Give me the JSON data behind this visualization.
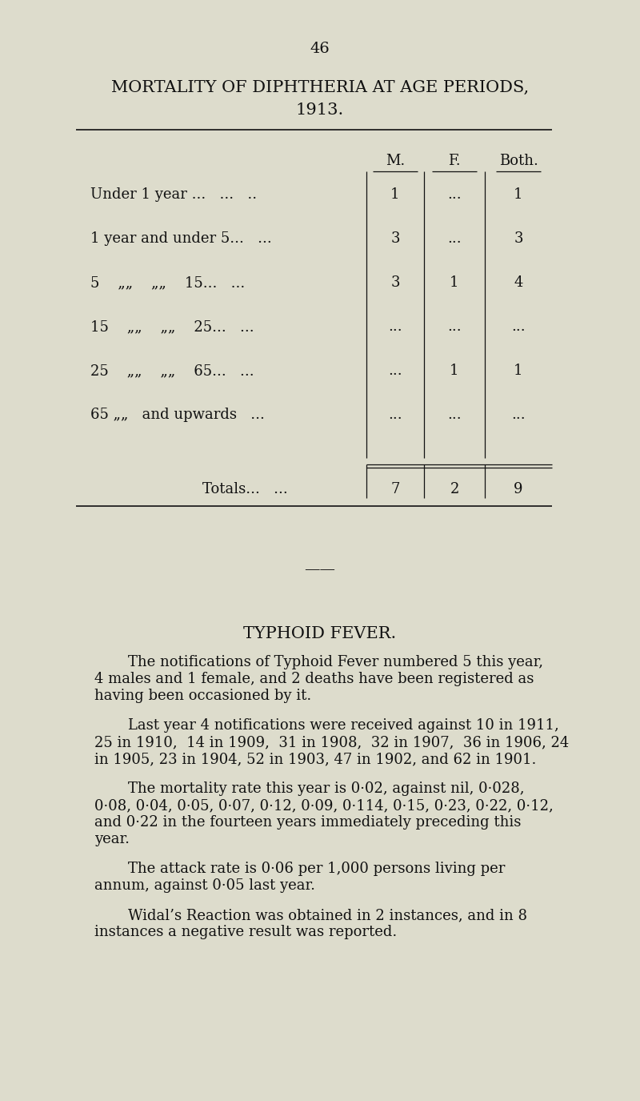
{
  "page_number": "46",
  "background_color": "#dddccc",
  "text_color": "#111111",
  "title_line1": "MORTALITY OF DIPHTHERIA AT AGE PERIODS,",
  "title_line2": "1913.",
  "table_headers": [
    "M.",
    "F.",
    "Both."
  ],
  "table_rows": [
    {
      "label": "Under 1 year ...   ...   ..",
      "m": "1",
      "f": "...",
      "both": "1"
    },
    {
      "label": "1 year and under 5...   ...",
      "m": "3",
      "f": "...",
      "both": "3"
    },
    {
      "label": "5    „„    „„    15...   ...",
      "m": "3",
      "f": "1",
      "both": "4"
    },
    {
      "label": "15    „„    „„    25...   ...",
      "m": "...",
      "f": "...",
      "both": "..."
    },
    {
      "label": "25    „„    „„    65...   ...",
      "m": "...",
      "f": "1",
      "both": "1"
    },
    {
      "label": "65 „„   and upwards    ...",
      "m": "...",
      "f": "...",
      "both": "..."
    }
  ],
  "totals_label": "Totals...   ...",
  "totals": {
    "m": "7",
    "f": "2",
    "both": "9"
  },
  "section_title": "TYPHOID FEVER.",
  "para1_line1": "The notifications of Typhoid Fever numbered 5 this year,",
  "para1_line2": "4 males and 1 female, and 2 deaths have been registered as",
  "para1_line3": "having been occasioned by it.",
  "para2_line1": "Last year 4 notifications were received against 10 in 1911,",
  "para2_line2": "25 in 1910,  14 in 1909,  31 in 1908,  32 in 1907,  36 in 1906, 24",
  "para2_line3": "in 1905, 23 in 1904, 52 in 1903, 47 in 1902, and 62 in 1901.",
  "para3_line1": "The mortality rate this year is 0·02, against nil, 0·028,",
  "para3_line2": "0·08, 0·04, 0·05, 0·07, 0·12, 0·09, 0·114, 0·15, 0·23, 0·22, 0·12,",
  "para3_line3": "and 0·22 in the fourteen years immediately preceding this",
  "para3_line4": "year.",
  "para4_line1": "The attack rate is 0·06 per 1,000 persons living per",
  "para4_line2": "annum, against 0·05 last year.",
  "para5_line1": "Widal’s Reaction was obtained in 2 instances, and in 8",
  "para5_line2": "instances a negative result was reported."
}
